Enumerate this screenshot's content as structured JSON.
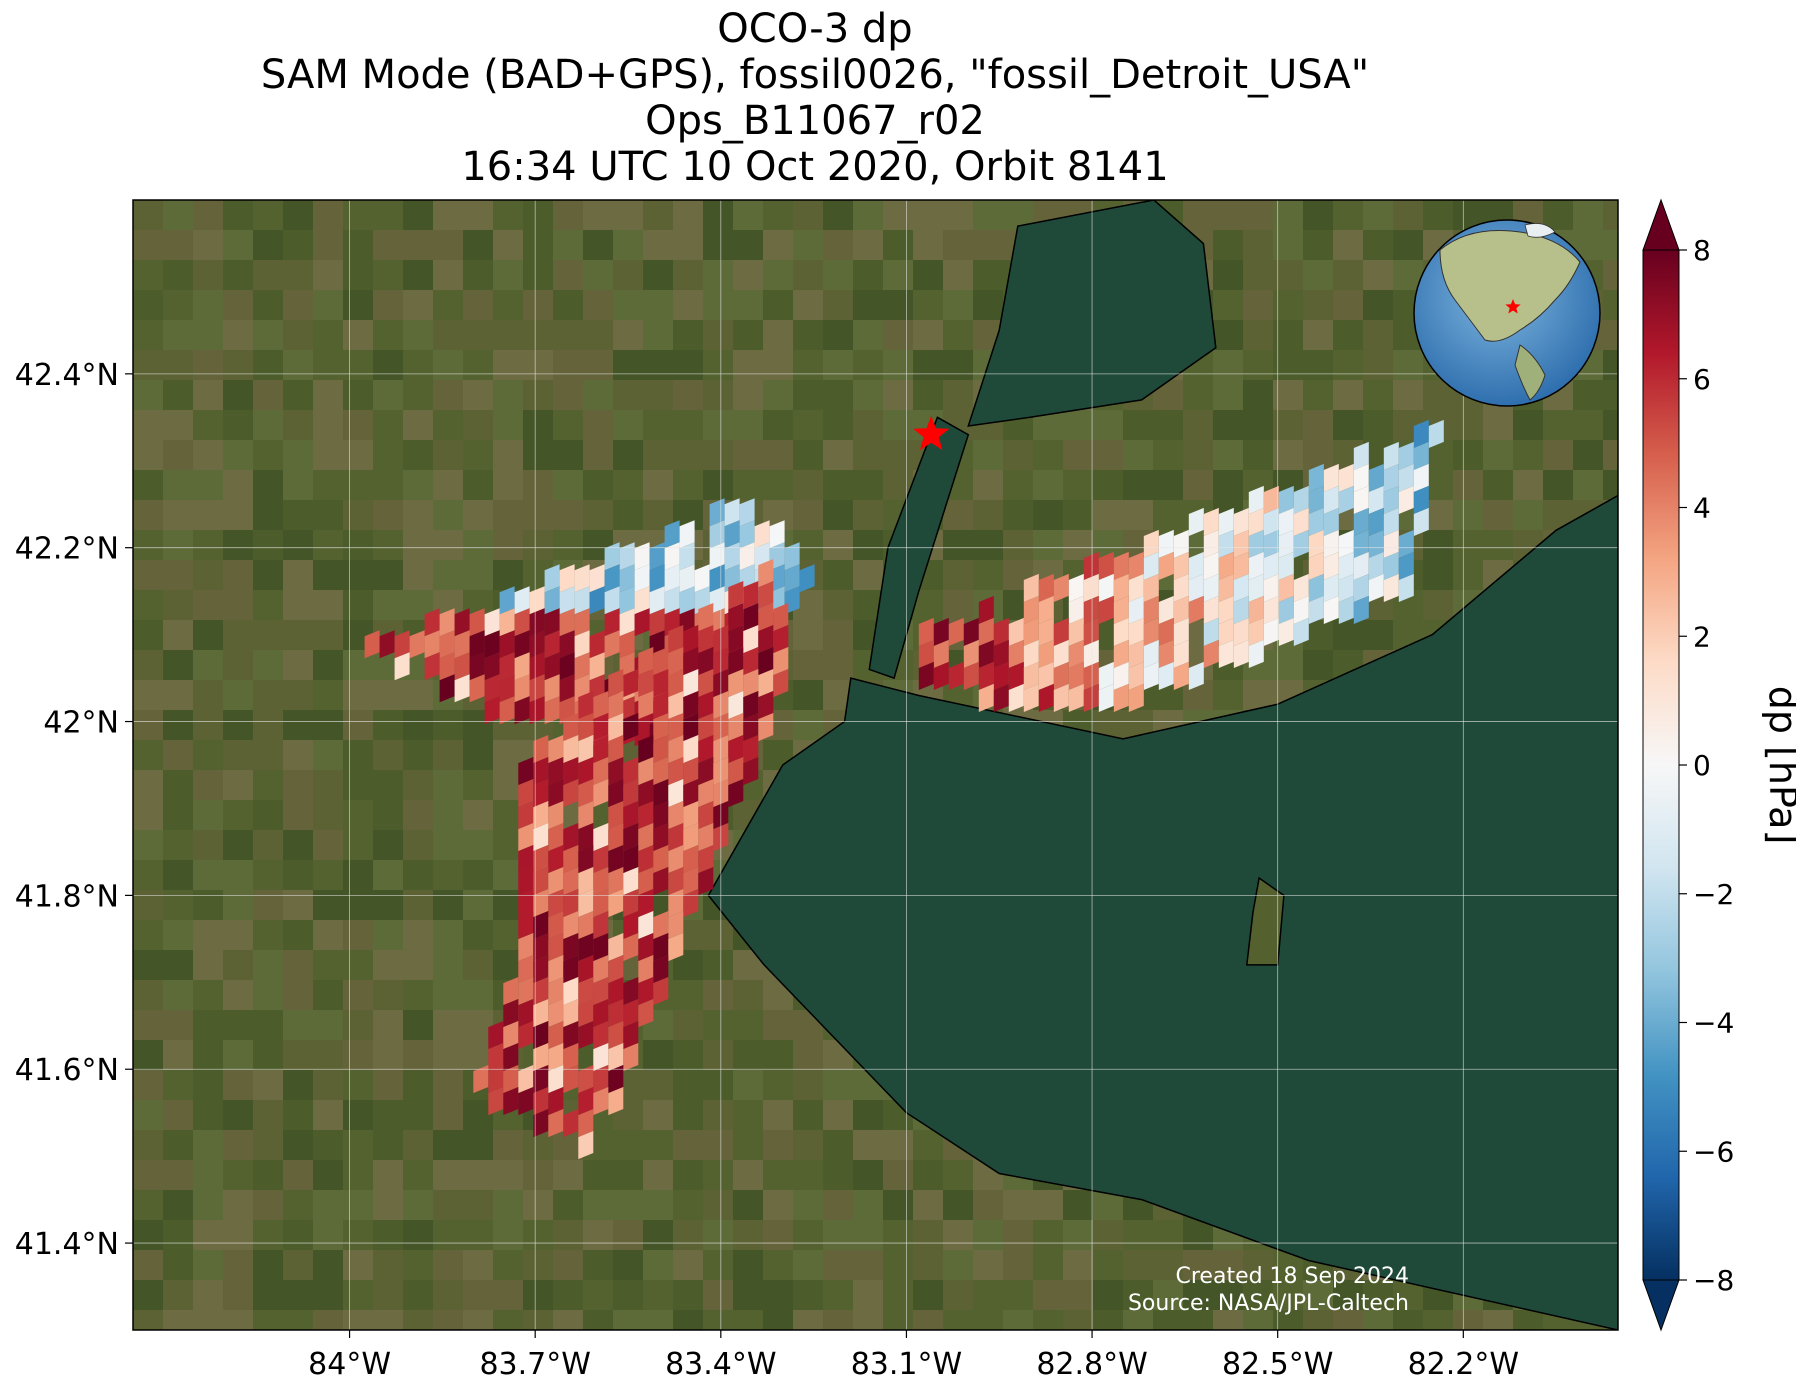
{
  "title_lines": [
    "OCO-3 dp",
    "SAM Mode (BAD+GPS), fossil0026, \"fossil_Detroit_USA\"",
    "Ops_B11067_r02",
    "16:34 UTC 10 Oct 2020, Orbit 8141"
  ],
  "map": {
    "lon_range": [
      -84.35,
      -81.95
    ],
    "lat_range": [
      41.3,
      42.6
    ],
    "x_ticks": [
      {
        "value": -84.0,
        "label": "84°W"
      },
      {
        "value": -83.7,
        "label": "83.7°W"
      },
      {
        "value": -83.4,
        "label": "83.4°W"
      },
      {
        "value": -83.1,
        "label": "83.1°W"
      },
      {
        "value": -82.8,
        "label": "82.8°W"
      },
      {
        "value": -82.5,
        "label": "82.5°W"
      },
      {
        "value": -82.2,
        "label": "82.2°W"
      }
    ],
    "y_ticks": [
      {
        "value": 42.4,
        "label": "42.4°N"
      },
      {
        "value": 42.2,
        "label": "42.2°N"
      },
      {
        "value": 42.0,
        "label": "42°N"
      },
      {
        "value": 41.8,
        "label": "41.8°N"
      },
      {
        "value": 41.6,
        "label": "41.6°N"
      },
      {
        "value": 41.4,
        "label": "41.4°N"
      }
    ],
    "target_marker": {
      "lon": -83.06,
      "lat": 42.33,
      "symbol": "star",
      "color": "#ff0000"
    },
    "colors": {
      "land": "#4a5a2c",
      "water": "#1f4a3a",
      "grid": "#e8e8e8",
      "coast": "#000000"
    }
  },
  "chart_data": {
    "type": "heatmap",
    "variable": "dp",
    "swaths": [
      {
        "corners_lonlat": [
          [
            -84.0,
            42.08
          ],
          [
            -83.36,
            42.25
          ],
          [
            -83.24,
            42.17
          ],
          [
            -83.5,
            41.97
          ],
          [
            -83.75,
            42.0
          ],
          [
            -84.0,
            42.08
          ]
        ]
      },
      {
        "corners_lonlat": [
          [
            -83.74,
            41.95
          ],
          [
            -83.32,
            42.18
          ],
          [
            -83.28,
            42.06
          ],
          [
            -83.6,
            41.5
          ],
          [
            -83.8,
            41.57
          ],
          [
            -83.72,
            41.75
          ]
        ]
      },
      {
        "corners_lonlat": [
          [
            -83.08,
            42.1
          ],
          [
            -82.24,
            42.34
          ],
          [
            -82.28,
            42.15
          ],
          [
            -82.75,
            42.01
          ],
          [
            -83.08,
            42.03
          ]
        ]
      }
    ]
  },
  "colorbar": {
    "label": "dp [hPa]",
    "min": -9,
    "max": 9,
    "ticks": [
      {
        "value": 8,
        "label": "8"
      },
      {
        "value": 6,
        "label": "6"
      },
      {
        "value": 4,
        "label": "4"
      },
      {
        "value": 2,
        "label": "2"
      },
      {
        "value": 0,
        "label": "0"
      },
      {
        "value": -2,
        "label": "−2"
      },
      {
        "value": -4,
        "label": "−4"
      },
      {
        "value": -6,
        "label": "−6"
      },
      {
        "value": -8,
        "label": "−8"
      }
    ],
    "stops": [
      "#053061",
      "#2166ac",
      "#4393c3",
      "#92c5de",
      "#d1e5f0",
      "#f7f7f7",
      "#fddbc7",
      "#f4a582",
      "#d6604d",
      "#b2182b",
      "#67001f"
    ]
  },
  "credits": {
    "created": "Created 18 Sep 2024",
    "source": "Source: NASA/JPL-Caltech"
  }
}
